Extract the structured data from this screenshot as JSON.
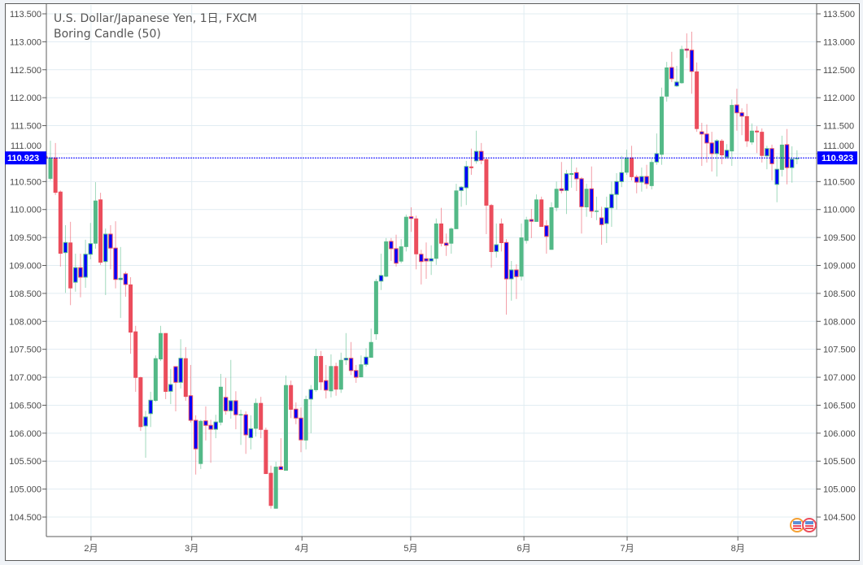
{
  "chart_data": {
    "type": "candlestick",
    "title": "U.S. Dollar/Japanese Yen, 1日, FXCM",
    "indicator": "Boring Candle (50)",
    "ylim": [
      104.15,
      113.66
    ],
    "y_ticks": [
      "104.500",
      "105.000",
      "105.500",
      "106.000",
      "106.500",
      "107.000",
      "107.500",
      "108.000",
      "108.500",
      "109.000",
      "109.500",
      "110.000",
      "110.500",
      "111.000",
      "111.500",
      "112.000",
      "112.500",
      "113.000",
      "113.500"
    ],
    "x_ticks": [
      {
        "label": "2月",
        "at_index": 9.1
      },
      {
        "label": "3月",
        "at_index": 29.2
      },
      {
        "label": "4月",
        "at_index": 51.2
      },
      {
        "label": "5月",
        "at_index": 72.9
      },
      {
        "label": "6月",
        "at_index": 95.5
      },
      {
        "label": "7月",
        "at_index": 116.1
      },
      {
        "label": "8月",
        "at_index": 138.2
      }
    ],
    "current_price": "110.923",
    "colors": {
      "up": "#53b987",
      "down": "#eb4d5c",
      "boring": "#0000ff",
      "price_line": "#0000ff",
      "grid": "#e1ecf2"
    },
    "candle_fields": [
      "open",
      "high",
      "low",
      "close",
      "boring"
    ],
    "candles": [
      [
        110.96,
        111.12,
        110.8,
        110.91,
        0
      ],
      [
        110.55,
        111.23,
        110.52,
        110.93,
        0
      ],
      [
        110.93,
        111.19,
        110.26,
        110.3,
        0
      ],
      [
        110.32,
        110.34,
        108.98,
        109.21,
        0
      ],
      [
        109.23,
        109.72,
        108.51,
        109.41,
        1
      ],
      [
        109.41,
        109.78,
        108.29,
        108.59,
        0
      ],
      [
        108.7,
        109.21,
        108.53,
        108.96,
        1
      ],
      [
        108.96,
        109.21,
        108.43,
        108.79,
        1
      ],
      [
        108.79,
        109.46,
        108.6,
        109.2,
        1
      ],
      [
        109.2,
        109.76,
        109.11,
        109.39,
        1
      ],
      [
        109.39,
        110.49,
        109.3,
        110.16,
        0
      ],
      [
        110.18,
        110.3,
        109.01,
        109.05,
        0
      ],
      [
        109.07,
        109.66,
        108.47,
        109.56,
        1
      ],
      [
        109.56,
        109.72,
        108.93,
        109.31,
        1
      ],
      [
        109.31,
        109.79,
        108.59,
        108.75,
        1
      ],
      [
        108.75,
        109.33,
        108.06,
        108.77,
        1
      ],
      [
        108.85,
        108.89,
        108.44,
        108.66,
        1
      ],
      [
        108.66,
        108.79,
        107.42,
        107.8,
        0
      ],
      [
        107.82,
        107.92,
        106.74,
        106.99,
        0
      ],
      [
        107.0,
        107.01,
        106.04,
        106.11,
        0
      ],
      [
        106.13,
        106.4,
        105.56,
        106.29,
        1
      ],
      [
        106.35,
        106.74,
        106.11,
        106.59,
        1
      ],
      [
        106.58,
        107.39,
        106.56,
        107.34,
        0
      ],
      [
        107.32,
        107.92,
        107.29,
        107.79,
        0
      ],
      [
        107.79,
        107.79,
        106.61,
        106.74,
        0
      ],
      [
        106.75,
        107.15,
        106.52,
        106.87,
        1
      ],
      [
        107.19,
        107.2,
        106.39,
        106.91,
        1
      ],
      [
        106.91,
        107.68,
        106.8,
        107.34,
        1
      ],
      [
        107.34,
        107.54,
        106.58,
        106.65,
        0
      ],
      [
        106.67,
        107.22,
        106.19,
        106.23,
        1
      ],
      [
        106.23,
        106.32,
        105.26,
        105.72,
        1
      ],
      [
        105.45,
        106.24,
        105.36,
        106.22,
        0
      ],
      [
        106.22,
        106.48,
        105.87,
        106.14,
        1
      ],
      [
        106.14,
        106.24,
        105.47,
        106.07,
        1
      ],
      [
        106.07,
        106.33,
        105.91,
        106.2,
        1
      ],
      [
        106.19,
        107.06,
        106.14,
        106.83,
        0
      ],
      [
        106.64,
        106.99,
        106.33,
        106.4,
        1
      ],
      [
        106.4,
        107.31,
        106.26,
        106.58,
        1
      ],
      [
        106.58,
        106.75,
        106.07,
        106.33,
        1
      ],
      [
        106.33,
        106.42,
        105.79,
        106.34,
        0
      ],
      [
        106.33,
        106.39,
        105.63,
        105.97,
        1
      ],
      [
        105.92,
        106.32,
        105.71,
        106.08,
        1
      ],
      [
        106.08,
        106.62,
        105.94,
        106.54,
        0
      ],
      [
        106.54,
        106.65,
        105.91,
        106.06,
        0
      ],
      [
        106.06,
        106.1,
        105.27,
        105.27,
        0
      ],
      [
        105.29,
        105.42,
        104.65,
        104.7,
        0
      ],
      [
        104.65,
        105.49,
        104.65,
        105.4,
        0
      ],
      [
        105.4,
        105.91,
        105.34,
        105.35,
        1
      ],
      [
        105.33,
        107.03,
        105.33,
        106.86,
        0
      ],
      [
        106.86,
        106.94,
        106.27,
        106.42,
        0
      ],
      [
        106.43,
        106.55,
        106.16,
        106.27,
        1
      ],
      [
        106.27,
        106.46,
        105.66,
        105.88,
        1
      ],
      [
        105.87,
        106.67,
        105.71,
        106.61,
        0
      ],
      [
        106.61,
        106.86,
        106.0,
        106.78,
        1
      ],
      [
        106.77,
        107.51,
        106.74,
        107.38,
        0
      ],
      [
        107.38,
        107.47,
        106.77,
        106.91,
        0
      ],
      [
        106.94,
        107.22,
        106.62,
        106.77,
        1
      ],
      [
        106.75,
        107.41,
        106.64,
        107.2,
        0
      ],
      [
        107.2,
        107.26,
        106.67,
        106.78,
        0
      ],
      [
        106.78,
        107.44,
        106.72,
        107.31,
        0
      ],
      [
        107.31,
        107.79,
        107.22,
        107.34,
        1
      ],
      [
        107.34,
        107.63,
        107.04,
        107.12,
        1
      ],
      [
        107.12,
        107.22,
        106.9,
        107.0,
        1
      ],
      [
        107.0,
        107.39,
        107.0,
        107.23,
        0
      ],
      [
        107.23,
        107.52,
        107.19,
        107.36,
        1
      ],
      [
        107.35,
        107.87,
        107.35,
        107.63,
        0
      ],
      [
        107.77,
        108.76,
        107.67,
        108.72,
        0
      ],
      [
        108.72,
        109.21,
        108.56,
        108.82,
        1
      ],
      [
        108.8,
        109.49,
        108.79,
        109.43,
        0
      ],
      [
        109.43,
        109.49,
        109.08,
        109.3,
        1
      ],
      [
        109.3,
        109.55,
        108.98,
        109.04,
        1
      ],
      [
        109.07,
        109.47,
        109.04,
        109.34,
        0
      ],
      [
        109.33,
        109.91,
        109.25,
        109.87,
        0
      ],
      [
        109.87,
        110.04,
        109.6,
        109.84,
        1
      ],
      [
        109.84,
        109.89,
        108.93,
        109.2,
        0
      ],
      [
        109.2,
        109.28,
        108.66,
        109.07,
        1
      ],
      [
        109.12,
        109.41,
        108.76,
        109.08,
        1
      ],
      [
        109.08,
        109.36,
        108.83,
        109.12,
        1
      ],
      [
        109.12,
        109.84,
        109.01,
        109.75,
        0
      ],
      [
        109.75,
        110.03,
        109.34,
        109.39,
        0
      ],
      [
        109.4,
        109.57,
        109.17,
        109.36,
        1
      ],
      [
        109.39,
        109.68,
        109.21,
        109.66,
        0
      ],
      [
        109.65,
        110.46,
        109.65,
        110.34,
        0
      ],
      [
        110.34,
        110.42,
        110.05,
        110.4,
        1
      ],
      [
        110.39,
        110.87,
        110.08,
        110.77,
        1
      ],
      [
        110.77,
        111.09,
        110.62,
        110.74,
        0
      ],
      [
        110.87,
        111.41,
        110.82,
        111.04,
        1
      ],
      [
        111.04,
        111.19,
        110.81,
        110.88,
        1
      ],
      [
        110.9,
        110.91,
        109.56,
        110.07,
        0
      ],
      [
        110.08,
        110.1,
        108.96,
        109.24,
        0
      ],
      [
        109.25,
        109.75,
        109.14,
        109.37,
        1
      ],
      [
        109.75,
        109.84,
        109.25,
        109.4,
        0
      ],
      [
        109.41,
        109.47,
        108.12,
        108.76,
        1
      ],
      [
        108.76,
        109.08,
        108.37,
        108.92,
        1
      ],
      [
        108.92,
        109.02,
        108.4,
        108.8,
        1
      ],
      [
        108.8,
        109.75,
        108.73,
        109.5,
        0
      ],
      [
        109.44,
        109.87,
        109.39,
        109.82,
        0
      ],
      [
        109.82,
        110.01,
        109.49,
        109.79,
        1
      ],
      [
        109.78,
        110.27,
        109.78,
        110.18,
        0
      ],
      [
        110.18,
        110.23,
        109.69,
        109.69,
        0
      ],
      [
        109.71,
        109.81,
        109.21,
        109.52,
        1
      ],
      [
        109.28,
        110.13,
        109.28,
        110.04,
        0
      ],
      [
        110.03,
        110.5,
        109.97,
        110.37,
        0
      ],
      [
        110.37,
        110.85,
        110.29,
        110.34,
        1
      ],
      [
        110.34,
        110.71,
        109.92,
        110.64,
        1
      ],
      [
        110.62,
        110.93,
        110.39,
        110.65,
        0
      ],
      [
        110.66,
        110.75,
        110.33,
        110.55,
        1
      ],
      [
        110.55,
        110.58,
        109.57,
        110.05,
        1
      ],
      [
        110.04,
        110.46,
        109.87,
        110.37,
        0
      ],
      [
        110.37,
        110.77,
        109.85,
        109.97,
        1
      ],
      [
        109.96,
        110.23,
        109.81,
        109.98,
        0
      ],
      [
        109.85,
        110.05,
        109.37,
        109.73,
        1
      ],
      [
        109.75,
        110.23,
        109.4,
        110.03,
        1
      ],
      [
        110.03,
        110.5,
        109.69,
        110.27,
        1
      ],
      [
        110.27,
        110.65,
        110.0,
        110.5,
        1
      ],
      [
        110.5,
        110.96,
        110.4,
        110.66,
        1
      ],
      [
        110.66,
        111.07,
        110.62,
        110.93,
        0
      ],
      [
        110.93,
        111.14,
        110.52,
        110.58,
        0
      ],
      [
        110.58,
        110.62,
        110.29,
        110.49,
        1
      ],
      [
        110.49,
        110.75,
        110.32,
        110.59,
        1
      ],
      [
        110.59,
        110.8,
        110.37,
        110.46,
        1
      ],
      [
        110.42,
        110.91,
        110.36,
        110.85,
        0
      ],
      [
        110.85,
        111.36,
        110.8,
        111.0,
        1
      ],
      [
        110.98,
        112.18,
        110.8,
        112.02,
        0
      ],
      [
        112.02,
        112.64,
        111.93,
        112.54,
        0
      ],
      [
        112.54,
        112.82,
        112.28,
        112.34,
        1
      ],
      [
        112.21,
        112.57,
        112.19,
        112.28,
        1
      ],
      [
        112.26,
        112.93,
        112.25,
        112.87,
        0
      ],
      [
        112.87,
        113.15,
        112.71,
        112.85,
        1
      ],
      [
        112.85,
        113.18,
        112.07,
        112.47,
        1
      ],
      [
        112.47,
        112.63,
        111.39,
        111.44,
        0
      ],
      [
        111.39,
        111.55,
        110.78,
        111.35,
        1
      ],
      [
        111.35,
        111.52,
        110.84,
        111.19,
        1
      ],
      [
        111.19,
        111.39,
        110.68,
        111.0,
        1
      ],
      [
        111.0,
        111.26,
        110.59,
        111.23,
        1
      ],
      [
        111.23,
        111.26,
        110.81,
        110.97,
        0
      ],
      [
        110.94,
        111.17,
        110.91,
        111.06,
        1
      ],
      [
        111.04,
        111.97,
        110.78,
        111.87,
        0
      ],
      [
        111.87,
        112.16,
        111.41,
        111.73,
        1
      ],
      [
        111.73,
        111.81,
        111.33,
        111.67,
        1
      ],
      [
        111.67,
        111.89,
        111.12,
        111.22,
        0
      ],
      [
        111.2,
        111.54,
        111.16,
        111.41,
        0
      ],
      [
        111.41,
        111.49,
        111.01,
        111.38,
        0
      ],
      [
        111.39,
        111.45,
        110.84,
        110.96,
        0
      ],
      [
        110.96,
        111.14,
        110.72,
        111.09,
        1
      ],
      [
        111.09,
        111.16,
        110.52,
        110.82,
        1
      ],
      [
        110.45,
        110.96,
        110.13,
        110.72,
        1
      ],
      [
        110.71,
        111.32,
        110.59,
        111.16,
        0
      ],
      [
        111.16,
        111.44,
        110.45,
        110.75,
        1
      ],
      [
        110.75,
        111.13,
        110.48,
        110.9,
        1
      ],
      [
        110.9,
        111.06,
        110.81,
        110.923,
        0
      ]
    ]
  }
}
